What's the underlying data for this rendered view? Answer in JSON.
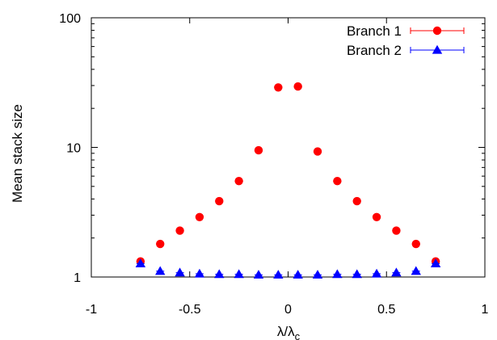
{
  "chart_data": {
    "type": "scatter",
    "xlabel": "λ/λ",
    "xlabel_sub": "c",
    "ylabel": "Mean stack size",
    "xlim": [
      -1,
      1
    ],
    "ylim": [
      1,
      100
    ],
    "y_scale": "log",
    "x_ticks": [
      -1,
      -0.5,
      0,
      0.5,
      1
    ],
    "x_tick_labels": [
      "-1",
      "-0.5",
      "0",
      "0.5",
      "1"
    ],
    "y_ticks": [
      1,
      10,
      100
    ],
    "y_tick_labels": [
      "1",
      "10",
      "100"
    ],
    "grid": false,
    "legend_position": "top-right",
    "series": [
      {
        "name": "Branch 1",
        "color": "#ff0000",
        "marker": "circle",
        "x": [
          -0.75,
          -0.65,
          -0.55,
          -0.45,
          -0.35,
          -0.25,
          -0.15,
          -0.05,
          0.05,
          0.15,
          0.25,
          0.35,
          0.45,
          0.55,
          0.65,
          0.75
        ],
        "y": [
          1.32,
          1.8,
          2.28,
          2.9,
          3.85,
          5.5,
          9.5,
          29,
          29.5,
          9.3,
          5.5,
          3.85,
          2.9,
          2.28,
          1.8,
          1.32
        ]
      },
      {
        "name": "Branch 2",
        "color": "#0000ff",
        "marker": "triangle",
        "x": [
          -0.75,
          -0.65,
          -0.55,
          -0.45,
          -0.35,
          -0.25,
          -0.15,
          -0.05,
          0.05,
          0.15,
          0.25,
          0.35,
          0.45,
          0.55,
          0.65,
          0.75
        ],
        "y": [
          1.27,
          1.11,
          1.08,
          1.06,
          1.05,
          1.05,
          1.04,
          1.04,
          1.04,
          1.04,
          1.05,
          1.05,
          1.06,
          1.08,
          1.11,
          1.27
        ]
      }
    ]
  }
}
